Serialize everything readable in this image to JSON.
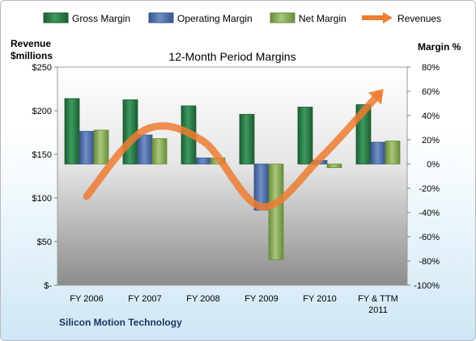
{
  "chart_data": {
    "type": "bar",
    "title": "12-Month Period Margins",
    "y_left_label_line1": "Revenue",
    "y_left_label_line2": "$millions",
    "y_right_label": "Margin %",
    "categories": [
      "FY 2006",
      "FY 2007",
      "FY 2008",
      "FY 2009",
      "FY 2010",
      "FY & TTM 2011"
    ],
    "series": [
      {
        "name": "Gross Margin",
        "axis": "right",
        "kind": "bar",
        "color": "#2e7d4a",
        "values": [
          54,
          53,
          48,
          41,
          47,
          49
        ]
      },
      {
        "name": "Operating Margin",
        "axis": "right",
        "kind": "bar",
        "color": "#4f6fa8",
        "values": [
          27,
          24,
          5,
          -38,
          3,
          18
        ]
      },
      {
        "name": "Net Margin",
        "axis": "right",
        "kind": "bar",
        "color": "#8aab5a",
        "values": [
          28,
          21,
          5,
          -79,
          -3,
          19
        ]
      },
      {
        "name": "Revenues",
        "axis": "left",
        "kind": "line",
        "color": "#ed7d31",
        "values": [
          102,
          178,
          165,
          90,
          145,
          218
        ]
      }
    ],
    "y_left": {
      "min": 0,
      "max": 250,
      "ticks": [
        0,
        50,
        100,
        150,
        200,
        250
      ],
      "tick_labels": [
        "$-",
        "$50",
        "$100",
        "$150",
        "$200",
        "$250"
      ]
    },
    "y_right": {
      "min": -100,
      "max": 80,
      "ticks": [
        -100,
        -80,
        -60,
        -40,
        -20,
        0,
        20,
        40,
        60,
        80
      ],
      "tick_labels": [
        "-100%",
        "-80%",
        "-60%",
        "-40%",
        "-20%",
        "0%",
        "20%",
        "40%",
        "60%",
        "80%"
      ]
    },
    "legend": "top",
    "company": "Silicon Motion Technology"
  }
}
